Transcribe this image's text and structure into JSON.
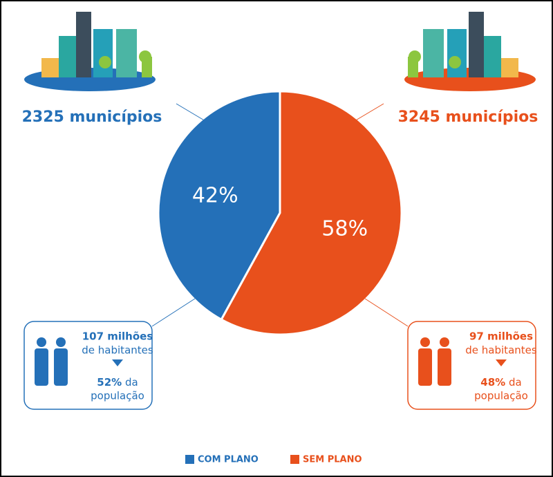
{
  "chart_data": {
    "type": "pie",
    "categories": [
      "COM PLANO",
      "SEM PLANO"
    ],
    "values": [
      42,
      58
    ],
    "value_labels": [
      "42%",
      "58%"
    ],
    "colors": [
      "#2470b8",
      "#e8501c"
    ],
    "legend": "bottom",
    "annotations": [
      {
        "municipios": "2325 municípios",
        "habitantes": "107 milhões",
        "habitantes_sub": "de habitantes",
        "share": "52%",
        "share_suffix": "da",
        "share_sub": "população"
      },
      {
        "municipios": "3245 municípios",
        "habitantes": "97 milhões",
        "habitantes_sub": "de habitantes",
        "share": "48%",
        "share_suffix": "da",
        "share_sub": "população"
      }
    ]
  }
}
